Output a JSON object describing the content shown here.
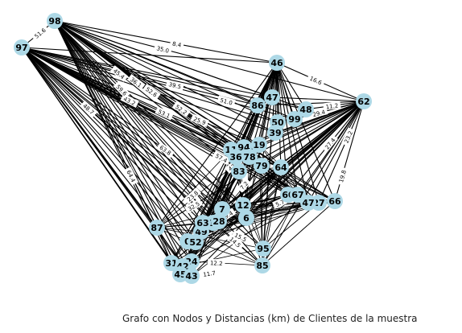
{
  "caption": "Grafo con Nodos y Distancias (km) de Clientes de la muestra",
  "colors": {
    "node_fill": "#add8e6",
    "edge": "#000000",
    "label_text": "#000000"
  },
  "graph": {
    "nodes": [
      "98",
      "97",
      "46",
      "62",
      "47",
      "86",
      "48",
      "99",
      "50",
      "39",
      "19",
      "11",
      "94",
      "36",
      "78",
      "79",
      "64",
      "83",
      "60",
      "67",
      "27",
      "66",
      "47b",
      "12",
      "7",
      "6",
      "23",
      "87",
      "49",
      "63",
      "28",
      "0",
      "52",
      "95",
      "31",
      "24",
      "42",
      "45",
      "43",
      "85"
    ],
    "edge_labels": [
      "35.0",
      "51.6",
      "8.4",
      "39.5",
      "51.0",
      "45.4",
      "43.2",
      "52.6",
      "63.8",
      "64.4",
      "48.7",
      "36.1",
      "53.1",
      "52.2",
      "57.4",
      "59.6",
      "16.6",
      "11.2",
      "29.4",
      "19.8",
      "23.2",
      "27.4",
      "14.5",
      "12.2",
      "11.7",
      "19.3",
      "6.6",
      "7.2",
      "5.7",
      "42.2",
      "32.5",
      "23.8",
      "15.5",
      "9.4",
      "25.9"
    ]
  }
}
